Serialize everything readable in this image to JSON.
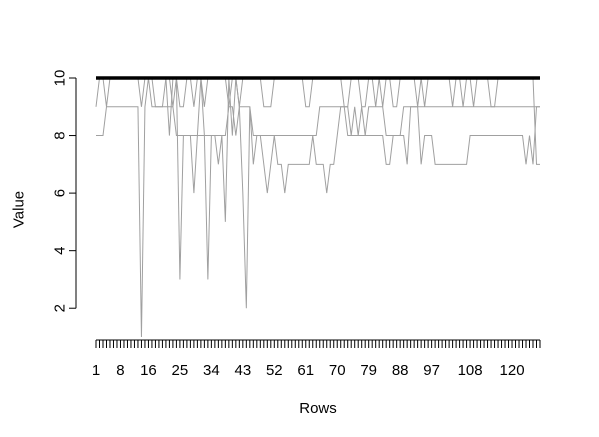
{
  "chart_data": {
    "type": "line",
    "xlabel": "Rows",
    "ylabel": "Value",
    "xlim": [
      1,
      128
    ],
    "ylim": [
      1,
      10
    ],
    "y_ticks": [
      2,
      4,
      6,
      8,
      10
    ],
    "x_tick_labels": [
      1,
      8,
      16,
      25,
      34,
      43,
      52,
      61,
      70,
      79,
      88,
      97,
      108,
      120
    ],
    "grid": false,
    "legend": "none",
    "colors": {
      "series": "#a0a0a0",
      "top_series": "#000000"
    },
    "series": [
      {
        "color": "#000000",
        "values": [
          10,
          10,
          10,
          10,
          10,
          10,
          10,
          10,
          10,
          10,
          10,
          10,
          10,
          10,
          10,
          10,
          10,
          10,
          10,
          10,
          10,
          10,
          10,
          10,
          10,
          10,
          10,
          10,
          10,
          10,
          10,
          10,
          10,
          10,
          10,
          10,
          10,
          10,
          10,
          10,
          10,
          10,
          10,
          10,
          10,
          10,
          10,
          10,
          10,
          10,
          10,
          10,
          10,
          10,
          10,
          10,
          10,
          10,
          10,
          10,
          10,
          10,
          10,
          10,
          10,
          10,
          10,
          10,
          10,
          10,
          10,
          10,
          10,
          10,
          10,
          10,
          10,
          10,
          10,
          10,
          10,
          10,
          10,
          10,
          10,
          10,
          10,
          10,
          10,
          10,
          10,
          10,
          10,
          10,
          10,
          10,
          10,
          10,
          10,
          10,
          10,
          10,
          10,
          10,
          10,
          10,
          10,
          10,
          10,
          10,
          10,
          10,
          10,
          10,
          10,
          10,
          10,
          10,
          10,
          10,
          10,
          10,
          10,
          10,
          10,
          10,
          10,
          10
        ]
      },
      {
        "color": "#a0a0a0",
        "values": [
          9,
          10,
          10,
          9,
          10,
          10,
          10,
          10,
          10,
          10,
          10,
          10,
          10,
          9,
          10,
          10,
          10,
          9,
          9,
          9,
          10,
          10,
          9,
          10,
          9,
          9,
          10,
          10,
          9,
          10,
          10,
          9,
          10,
          10,
          10,
          10,
          10,
          10,
          9,
          10,
          10,
          9,
          10,
          10,
          10,
          10,
          10,
          10,
          9,
          9,
          9,
          10,
          10,
          10,
          10,
          10,
          10,
          10,
          10,
          10,
          9,
          9,
          10,
          10,
          10,
          10,
          10,
          10,
          10,
          10,
          10,
          9,
          9,
          10,
          10,
          10,
          9,
          9,
          10,
          10,
          9,
          10,
          9,
          10,
          10,
          9,
          9,
          10,
          10,
          10,
          10,
          10,
          9,
          10,
          9,
          10,
          10,
          10,
          10,
          10,
          10,
          10,
          9,
          10,
          10,
          9,
          10,
          10,
          9,
          10,
          10,
          10,
          10,
          9,
          9,
          10,
          10,
          10,
          10,
          10,
          10,
          10,
          10,
          10,
          10,
          10,
          10,
          10
        ]
      },
      {
        "color": "#a0a0a0",
        "values": [
          8,
          8,
          8,
          9,
          9,
          9,
          9,
          9,
          9,
          9,
          9,
          9,
          9,
          1,
          9,
          10,
          9,
          9,
          9,
          9,
          9,
          9,
          9,
          8,
          8,
          8,
          8,
          8,
          8,
          8,
          8,
          8,
          8,
          8,
          8,
          8,
          8,
          8,
          9,
          9,
          8,
          9,
          9,
          9,
          9,
          8,
          8,
          8,
          8,
          8,
          8,
          8,
          8,
          8,
          8,
          8,
          8,
          8,
          8,
          8,
          8,
          8,
          8,
          8,
          9,
          9,
          9,
          9,
          9,
          9,
          9,
          9,
          8,
          8,
          8,
          8,
          8,
          8,
          9,
          9,
          9,
          9,
          9,
          8,
          8,
          8,
          8,
          8,
          9,
          9,
          9,
          9,
          9,
          9,
          9,
          9,
          9,
          9,
          9,
          9,
          9,
          9,
          9,
          9,
          9,
          9,
          9,
          9,
          9,
          9,
          9,
          9,
          9,
          9,
          9,
          9,
          9,
          9,
          9,
          9,
          9,
          9,
          9,
          9,
          9,
          9,
          9,
          9
        ]
      },
      {
        "color": "#a0a0a0",
        "values": [
          10,
          10,
          10,
          10,
          10,
          10,
          10,
          10,
          10,
          10,
          10,
          10,
          10,
          10,
          10,
          10,
          10,
          10,
          10,
          10,
          10,
          8,
          10,
          10,
          3,
          8,
          8,
          8,
          6,
          8,
          10,
          8,
          3,
          8,
          8,
          7,
          8,
          5,
          10,
          8,
          10,
          9,
          6,
          2,
          9,
          7,
          8,
          8,
          7,
          6,
          7,
          8,
          7,
          7,
          6,
          7,
          7,
          7,
          7,
          7,
          7,
          7,
          8,
          7,
          7,
          7,
          6,
          7,
          7,
          8,
          9,
          9,
          9,
          8,
          9,
          8,
          9,
          8,
          8,
          8,
          8,
          8,
          8,
          7,
          7,
          8,
          8,
          8,
          8,
          7,
          9,
          9,
          9,
          7,
          8,
          8,
          8,
          7,
          7,
          7,
          7,
          7,
          7,
          7,
          7,
          7,
          7,
          8,
          8,
          8,
          8,
          8,
          8,
          8,
          8,
          8,
          8,
          8,
          8,
          8,
          8,
          8,
          8,
          7,
          8,
          7,
          9,
          9
        ]
      },
      {
        "color": "#a0a0a0",
        "values": [
          10,
          10,
          10,
          10,
          10,
          10,
          10,
          10,
          10,
          10,
          10,
          10,
          10,
          10,
          10,
          10,
          10,
          10,
          10,
          10,
          10,
          10,
          10,
          10,
          10,
          10,
          10,
          10,
          10,
          10,
          10,
          10,
          10,
          10,
          10,
          10,
          10,
          10,
          10,
          10,
          10,
          10,
          10,
          10,
          10,
          10,
          10,
          10,
          10,
          10,
          10,
          10,
          10,
          10,
          10,
          10,
          10,
          10,
          10,
          10,
          10,
          10,
          10,
          10,
          10,
          10,
          10,
          10,
          10,
          10,
          10,
          10,
          10,
          10,
          10,
          10,
          10,
          10,
          10,
          10,
          10,
          10,
          10,
          10,
          10,
          10,
          10,
          10,
          10,
          10,
          10,
          10,
          10,
          10,
          10,
          10,
          10,
          10,
          10,
          10,
          10,
          10,
          10,
          10,
          10,
          10,
          10,
          10,
          10,
          10,
          10,
          10,
          10,
          10,
          10,
          10,
          10,
          10,
          10,
          10,
          10,
          10,
          10,
          10,
          10,
          10,
          7,
          7
        ]
      }
    ]
  }
}
